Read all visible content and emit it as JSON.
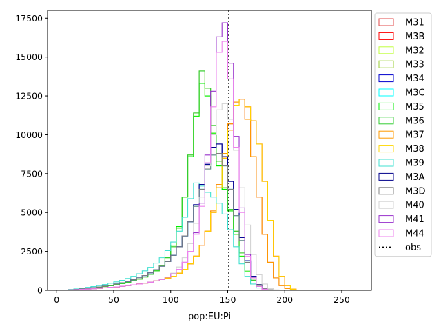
{
  "chart_data": {
    "type": "step-histogram",
    "xlabel": "pop:EU:Pi",
    "ylabel": "",
    "xlim": [
      -8,
      276
    ],
    "ylim": [
      0,
      18000
    ],
    "x_ticks": [
      0,
      50,
      100,
      150,
      200,
      250
    ],
    "x_tick_labels": [
      "0",
      "50",
      "100",
      "150",
      "200",
      "250"
    ],
    "y_ticks": [
      0,
      2500,
      5000,
      7500,
      10000,
      12500,
      15000,
      17500
    ],
    "y_tick_labels": [
      "0",
      "2500",
      "5000",
      "7500",
      "10000",
      "12500",
      "15000",
      "17500"
    ],
    "bin_start": 0,
    "bin_width": 5,
    "obs": {
      "name": "obs",
      "x": 151,
      "style": "dotted",
      "color": "#000000"
    },
    "legend_position": "outside-right",
    "series": [
      {
        "name": "M31",
        "color": "#e24a4a",
        "values": [
          0,
          10,
          20,
          40,
          60,
          80,
          100,
          130,
          160,
          190,
          220,
          260,
          300,
          350,
          400,
          460,
          520,
          600,
          690,
          790,
          900,
          1100,
          1350,
          1700,
          2200,
          2900,
          3800,
          5100,
          6800,
          8800,
          10700,
          12100,
          12300,
          11000,
          8600,
          6000,
          3600,
          1800,
          800,
          300,
          120,
          40,
          10
        ]
      },
      {
        "name": "M3B",
        "color": "#ff0000",
        "values": [
          0,
          10,
          20,
          40,
          60,
          80,
          100,
          130,
          160,
          190,
          220,
          260,
          300,
          350,
          400,
          460,
          520,
          600,
          690,
          790,
          900,
          1100,
          1350,
          1700,
          2200,
          2900,
          3800,
          5000,
          6600,
          8500,
          10300,
          11900,
          12300,
          11800,
          10900,
          9400,
          7000,
          4500,
          2200,
          900,
          300,
          80,
          15
        ]
      },
      {
        "name": "M32",
        "color": "#c0ff3e",
        "values": [
          0,
          10,
          30,
          60,
          90,
          120,
          160,
          200,
          250,
          300,
          360,
          430,
          510,
          610,
          720,
          860,
          1020,
          1250,
          1600,
          2100,
          2900,
          4100,
          6000,
          8600,
          11200,
          13300,
          12500,
          10100,
          8000,
          6500,
          5100,
          3600,
          2200,
          1200,
          600,
          250,
          90,
          30,
          10,
          5,
          0,
          0,
          0
        ]
      },
      {
        "name": "M33",
        "color": "#9acd32",
        "values": [
          0,
          10,
          30,
          60,
          90,
          120,
          160,
          200,
          250,
          300,
          360,
          430,
          510,
          610,
          720,
          860,
          1020,
          1250,
          1600,
          2100,
          2800,
          4000,
          6000,
          8700,
          11400,
          14100,
          13000,
          10600,
          8300,
          6600,
          5200,
          3800,
          2400,
          1300,
          650,
          270,
          100,
          30,
          10,
          5,
          0,
          0,
          0
        ]
      },
      {
        "name": "M34",
        "color": "#0000cd",
        "values": [
          0,
          10,
          30,
          60,
          90,
          130,
          170,
          220,
          270,
          330,
          400,
          480,
          570,
          680,
          800,
          950,
          1120,
          1320,
          1550,
          1850,
          2250,
          2800,
          3500,
          4400,
          5500,
          6800,
          8100,
          9200,
          9400,
          8600,
          7000,
          5200,
          3400,
          1900,
          900,
          370,
          130,
          40,
          10,
          5,
          0,
          0,
          0
        ]
      },
      {
        "name": "M3C",
        "color": "#00ffff",
        "values": [
          0,
          10,
          30,
          60,
          90,
          130,
          170,
          220,
          270,
          330,
          400,
          480,
          570,
          680,
          800,
          950,
          1120,
          1320,
          1550,
          1850,
          2250,
          2800,
          3500,
          4400,
          5400,
          6500,
          7800,
          8700,
          8800,
          8000,
          6500,
          4800,
          3200,
          1800,
          850,
          350,
          120,
          40,
          10,
          5,
          0,
          0,
          0
        ]
      },
      {
        "name": "M35",
        "color": "#00ee00",
        "values": [
          0,
          10,
          30,
          60,
          90,
          120,
          160,
          200,
          250,
          300,
          360,
          430,
          510,
          610,
          720,
          860,
          1020,
          1250,
          1600,
          2100,
          2900,
          4100,
          6000,
          8600,
          11200,
          13300,
          12500,
          10100,
          8000,
          6500,
          5100,
          3600,
          2200,
          1200,
          600,
          250,
          90,
          30,
          10,
          5,
          0,
          0,
          0
        ]
      },
      {
        "name": "M36",
        "color": "#32cd32",
        "values": [
          0,
          10,
          30,
          60,
          90,
          120,
          160,
          200,
          250,
          300,
          360,
          430,
          510,
          610,
          720,
          860,
          1020,
          1250,
          1600,
          2100,
          2800,
          4000,
          6000,
          8700,
          11400,
          14100,
          13000,
          10600,
          8300,
          6600,
          5200,
          3800,
          2400,
          1300,
          650,
          270,
          100,
          30,
          10,
          5,
          0,
          0,
          0
        ]
      },
      {
        "name": "M37",
        "color": "#ff9900",
        "values": [
          0,
          10,
          20,
          40,
          60,
          80,
          100,
          130,
          160,
          190,
          220,
          260,
          300,
          350,
          400,
          460,
          520,
          600,
          690,
          790,
          900,
          1100,
          1350,
          1700,
          2200,
          2900,
          3800,
          5100,
          6800,
          8800,
          10700,
          12100,
          12300,
          11000,
          8600,
          6000,
          3600,
          1800,
          800,
          300,
          120,
          40,
          10
        ]
      },
      {
        "name": "M38",
        "color": "#ffd700",
        "values": [
          0,
          10,
          20,
          40,
          60,
          80,
          100,
          130,
          160,
          190,
          220,
          260,
          300,
          350,
          400,
          460,
          520,
          600,
          690,
          790,
          900,
          1100,
          1350,
          1700,
          2200,
          2900,
          3800,
          5000,
          6600,
          8500,
          10300,
          11900,
          12300,
          11800,
          10900,
          9400,
          7000,
          4500,
          2200,
          900,
          300,
          80,
          15
        ]
      },
      {
        "name": "M39",
        "color": "#40e0d0",
        "values": [
          0,
          20,
          50,
          90,
          140,
          190,
          240,
          300,
          370,
          450,
          540,
          640,
          760,
          900,
          1060,
          1250,
          1480,
          1750,
          2100,
          2550,
          3100,
          3800,
          4700,
          5900,
          6900,
          6700,
          6300,
          6000,
          5600,
          4900,
          3900,
          2800,
          1700,
          900,
          400,
          150,
          50,
          15,
          5,
          0,
          0,
          0,
          0
        ]
      },
      {
        "name": "M3A",
        "color": "#00008b",
        "values": [
          0,
          10,
          30,
          60,
          90,
          130,
          170,
          220,
          270,
          330,
          400,
          480,
          570,
          680,
          800,
          950,
          1120,
          1320,
          1550,
          1850,
          2250,
          2800,
          3500,
          4400,
          5500,
          6800,
          8100,
          9200,
          9400,
          8600,
          7000,
          5200,
          3400,
          1900,
          900,
          370,
          130,
          40,
          10,
          5,
          0,
          0,
          0
        ]
      },
      {
        "name": "M3D",
        "color": "#808080",
        "values": [
          0,
          10,
          30,
          60,
          90,
          130,
          170,
          220,
          270,
          330,
          400,
          480,
          570,
          680,
          800,
          950,
          1120,
          1320,
          1550,
          1850,
          2250,
          2800,
          3500,
          4400,
          5400,
          6500,
          7800,
          8700,
          8800,
          8000,
          6500,
          4800,
          3200,
          1800,
          850,
          350,
          120,
          40,
          10,
          5,
          0,
          0,
          0
        ]
      },
      {
        "name": "M40",
        "color": "#d3d3d3",
        "values": [
          0,
          10,
          20,
          40,
          60,
          80,
          100,
          130,
          160,
          190,
          220,
          260,
          300,
          350,
          400,
          460,
          520,
          600,
          700,
          860,
          1100,
          1500,
          2100,
          3000,
          4300,
          6000,
          8000,
          10000,
          11600,
          12000,
          11000,
          9000,
          6600,
          4200,
          2300,
          1000,
          400,
          120,
          30,
          5,
          0,
          0,
          0
        ]
      },
      {
        "name": "M41",
        "color": "#9932cc",
        "values": [
          0,
          10,
          20,
          40,
          60,
          80,
          100,
          130,
          160,
          190,
          220,
          260,
          300,
          350,
          400,
          460,
          520,
          600,
          700,
          850,
          1050,
          1350,
          1800,
          2500,
          3700,
          5600,
          8700,
          12800,
          16300,
          17200,
          14600,
          9900,
          5300,
          2300,
          800,
          250,
          70,
          20,
          5,
          0,
          0,
          0,
          0
        ]
      },
      {
        "name": "M44",
        "color": "#ee82ee",
        "values": [
          0,
          10,
          20,
          40,
          60,
          80,
          100,
          130,
          160,
          190,
          220,
          260,
          300,
          350,
          400,
          460,
          520,
          600,
          700,
          850,
          1050,
          1350,
          1800,
          2500,
          3600,
          5400,
          8200,
          11800,
          15300,
          16000,
          13600,
          9200,
          5000,
          2200,
          800,
          250,
          70,
          20,
          5,
          0,
          0,
          0,
          0
        ]
      }
    ]
  }
}
